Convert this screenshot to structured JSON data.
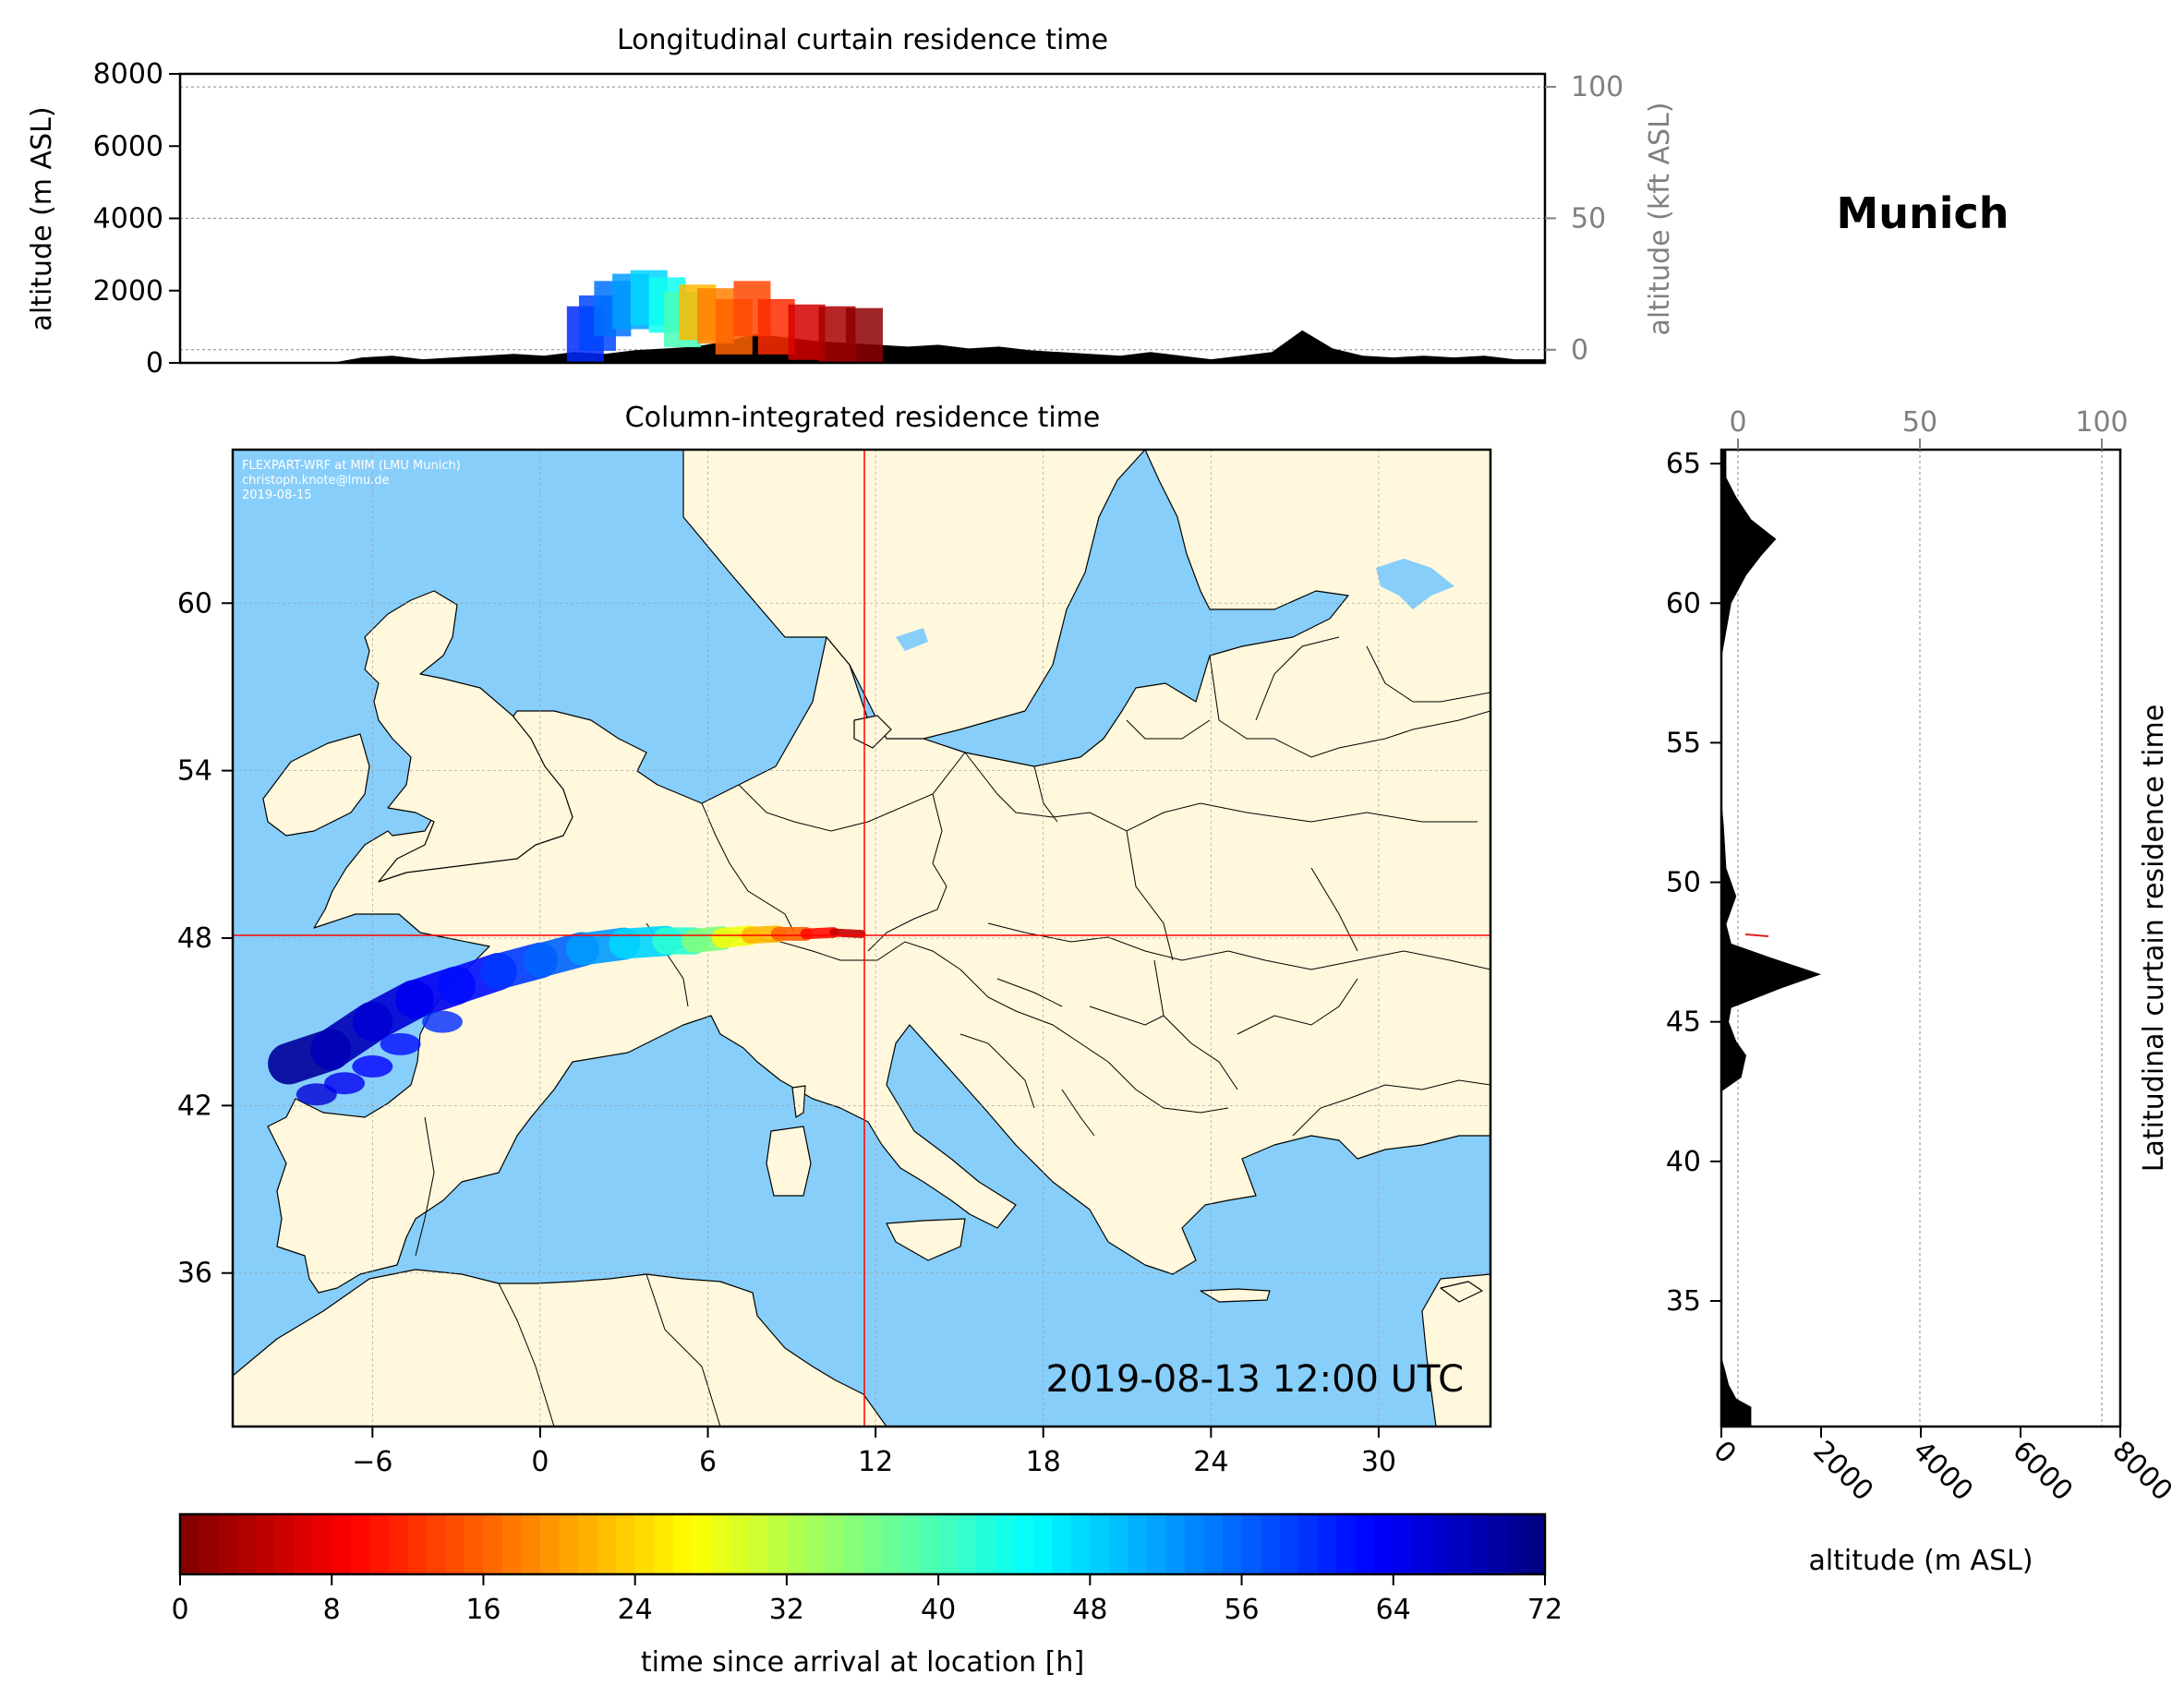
{
  "title": "Munich",
  "timestamp": "2019-08-13 12:00 UTC",
  "credit": {
    "line1": "FLEXPART-WRF at MIM (LMU Munich)",
    "line2": "christoph.knote@lmu.de",
    "line3": "2019-08-15"
  },
  "colors": {
    "ocean": "#87CEFA",
    "land": "#FFF8DC",
    "terrain": "#000000",
    "crosshair": "#FF0000"
  },
  "chart_data": [
    {
      "id": "longitudinal",
      "type": "area",
      "title": "Longitudinal curtain residence time",
      "ylabel": "altitude (m ASL)",
      "ylabel_right": "altitude (kft ASL)",
      "ylim": [
        0,
        8000
      ],
      "yticks": [
        "0",
        "2000",
        "4000",
        "6000",
        "8000"
      ],
      "ylim_right": [
        0,
        100
      ],
      "yticks_right": [
        "0",
        "50",
        "100"
      ],
      "xlim": [
        -11,
        34
      ],
      "terrain_profile": {
        "x": [
          -11,
          -6,
          -5,
          -4,
          -3,
          -2,
          -1,
          0,
          1,
          2,
          3,
          4,
          5,
          6,
          7,
          8,
          9,
          10,
          11,
          12,
          13,
          14,
          15,
          16,
          17,
          18,
          19,
          20,
          21,
          22,
          23,
          24,
          25,
          26,
          27,
          28,
          29,
          30,
          31,
          32,
          33,
          34
        ],
        "y": [
          0,
          0,
          150,
          200,
          100,
          150,
          200,
          250,
          200,
          300,
          250,
          350,
          400,
          450,
          600,
          800,
          700,
          600,
          550,
          500,
          450,
          500,
          400,
          450,
          350,
          300,
          250,
          200,
          300,
          200,
          100,
          200,
          300,
          900,
          400,
          200,
          150,
          200,
          150,
          200,
          100,
          100
        ]
      },
      "plume": [
        {
          "x": 2.3,
          "z": 800,
          "t": 60
        },
        {
          "x": 2.7,
          "z": 1100,
          "t": 58
        },
        {
          "x": 3.2,
          "z": 1500,
          "t": 55
        },
        {
          "x": 3.8,
          "z": 1700,
          "t": 52
        },
        {
          "x": 4.4,
          "z": 1800,
          "t": 48
        },
        {
          "x": 5.0,
          "z": 1600,
          "t": 44
        },
        {
          "x": 5.5,
          "z": 1200,
          "t": 40
        },
        {
          "x": 6.0,
          "z": 1400,
          "t": 22
        },
        {
          "x": 6.6,
          "z": 1300,
          "t": 18
        },
        {
          "x": 7.2,
          "z": 1000,
          "t": 16
        },
        {
          "x": 7.8,
          "z": 1500,
          "t": 14
        },
        {
          "x": 8.6,
          "z": 1000,
          "t": 12
        },
        {
          "x": 9.6,
          "z": 850,
          "t": 6
        },
        {
          "x": 10.6,
          "z": 800,
          "t": 3
        },
        {
          "x": 11.5,
          "z": 750,
          "t": 1
        }
      ]
    },
    {
      "id": "column",
      "type": "heatmap",
      "title": "Column-integrated residence time",
      "xlim": [
        -11,
        34
      ],
      "ylim": [
        30.5,
        65.5
      ],
      "xticks": [
        "−6",
        "0",
        "6",
        "12",
        "18",
        "24",
        "30"
      ],
      "yticks": [
        "36",
        "42",
        "48",
        "54",
        "60"
      ],
      "receptor": {
        "lon": 11.6,
        "lat": 48.1
      },
      "trajectory": [
        {
          "lon": -9.0,
          "lat": 43.5,
          "t": 70
        },
        {
          "lon": -7.5,
          "lat": 44.0,
          "t": 68
        },
        {
          "lon": -6.0,
          "lat": 45.0,
          "t": 66
        },
        {
          "lon": -4.5,
          "lat": 45.8,
          "t": 64
        },
        {
          "lon": -3.0,
          "lat": 46.3,
          "t": 62
        },
        {
          "lon": -1.5,
          "lat": 46.8,
          "t": 59
        },
        {
          "lon": 0.0,
          "lat": 47.2,
          "t": 56
        },
        {
          "lon": 1.5,
          "lat": 47.6,
          "t": 52
        },
        {
          "lon": 3.0,
          "lat": 47.8,
          "t": 48
        },
        {
          "lon": 4.5,
          "lat": 47.9,
          "t": 42
        },
        {
          "lon": 5.5,
          "lat": 47.9,
          "t": 36
        },
        {
          "lon": 6.5,
          "lat": 48.0,
          "t": 28
        },
        {
          "lon": 7.5,
          "lat": 48.1,
          "t": 22
        },
        {
          "lon": 8.5,
          "lat": 48.15,
          "t": 16
        },
        {
          "lon": 9.5,
          "lat": 48.15,
          "t": 10
        },
        {
          "lon": 10.5,
          "lat": 48.2,
          "t": 5
        },
        {
          "lon": 11.5,
          "lat": 48.15,
          "t": 1
        }
      ]
    },
    {
      "id": "latitudinal",
      "type": "area",
      "ylabel": "Latitudinal curtain residence time",
      "xlabel": "altitude (m ASL)",
      "xlim": [
        0,
        8000
      ],
      "xticks": [
        "0",
        "2000",
        "4000",
        "6000",
        "8000"
      ],
      "xlim_top": [
        0,
        100
      ],
      "xticks_top": [
        "0",
        "50",
        "100"
      ],
      "ylim": [
        30.5,
        65.5
      ],
      "yticks": [
        "35",
        "40",
        "45",
        "50",
        "55",
        "60",
        "65"
      ],
      "terrain_profile": {
        "lat": [
          30.5,
          31.2,
          31.5,
          32.0,
          32.5,
          33.0,
          42.5,
          43.0,
          43.8,
          44.3,
          45.0,
          45.5,
          46.2,
          46.7,
          47.0,
          47.3,
          47.8,
          48.5,
          49.5,
          50.5,
          52.0,
          53.0,
          58.0,
          59.0,
          60.0,
          61.0,
          61.7,
          62.3,
          63.0,
          63.8,
          64.5,
          65.5
        ],
        "alt": [
          600,
          600,
          300,
          150,
          80,
          0,
          0,
          400,
          500,
          300,
          150,
          200,
          1200,
          2000,
          1500,
          1000,
          200,
          100,
          300,
          100,
          50,
          0,
          0,
          100,
          200,
          500,
          800,
          1100,
          600,
          300,
          100,
          100
        ]
      }
    }
  ],
  "colorbar": {
    "label": "time since arrival at location [h]",
    "min": 0,
    "max": 72,
    "ticks": [
      "0",
      "8",
      "16",
      "24",
      "32",
      "40",
      "48",
      "56",
      "64",
      "72"
    ]
  }
}
